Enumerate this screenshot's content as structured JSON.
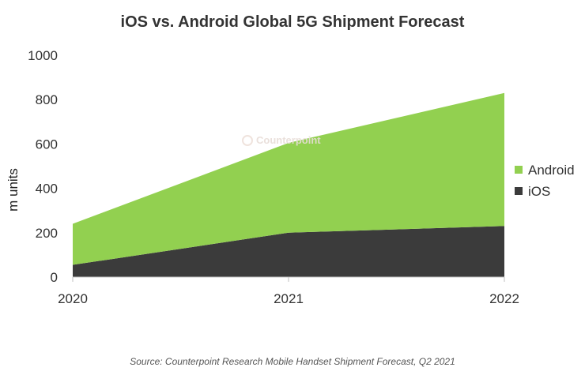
{
  "chart_data": {
    "type": "area",
    "stacked": true,
    "title": "iOS vs. Android Global 5G Shipment Forecast",
    "ylabel": "m units",
    "xlabel": "",
    "categories": [
      "2020",
      "2021",
      "2022"
    ],
    "ylim": [
      0,
      1000
    ],
    "yticks": [
      "0",
      "200",
      "400",
      "600",
      "800",
      "1000"
    ],
    "series": [
      {
        "name": "iOS",
        "values": [
          55,
          200,
          230
        ],
        "color": "#3b3b3b"
      },
      {
        "name": "Android",
        "values": [
          185,
          405,
          600
        ],
        "color": "#92d050"
      }
    ],
    "legend_position": "right",
    "grid": false,
    "watermark": "Counterpoint",
    "source": "Source: Counterpoint Research Mobile Handset Shipment Forecast, Q2 2021"
  }
}
